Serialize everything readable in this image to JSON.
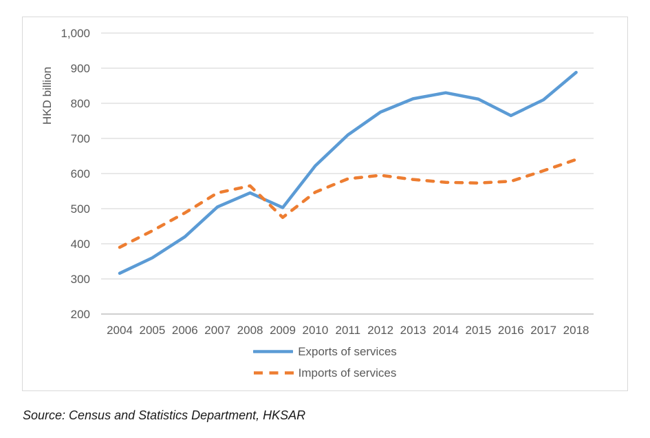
{
  "figure": {
    "ylabel": "HKD billion",
    "source": "Source: Census and Statistics Department, HKSAR"
  },
  "legend": {
    "items": [
      {
        "label": "Exports of services",
        "color": "#5B9BD5",
        "style": "solid"
      },
      {
        "label": "Imports of services",
        "color": "#ED7D31",
        "style": "dashed"
      }
    ]
  },
  "colors": {
    "gridline": "#D9D9D9",
    "axis_line": "#BFBFBF",
    "tick_label": "#595959",
    "exports_line": "#5B9BD5",
    "imports_line": "#ED7D31"
  },
  "chart_data": {
    "type": "line",
    "title": "",
    "xlabel": "",
    "ylabel": "HKD billion",
    "categories": [
      "2004",
      "2005",
      "2006",
      "2007",
      "2008",
      "2009",
      "2010",
      "2011",
      "2012",
      "2013",
      "2014",
      "2015",
      "2016",
      "2017",
      "2018"
    ],
    "series": [
      {
        "name": "Exports of services",
        "color": "#5B9BD5",
        "dash": "solid",
        "values": [
          316,
          360,
          420,
          505,
          545,
          503,
          622,
          710,
          775,
          813,
          830,
          812,
          765,
          810,
          888
        ]
      },
      {
        "name": "Imports of services",
        "color": "#ED7D31",
        "dash": "dashed",
        "values": [
          390,
          437,
          488,
          545,
          565,
          475,
          547,
          585,
          595,
          583,
          575,
          573,
          578,
          608,
          640
        ]
      }
    ],
    "ylim": [
      200,
      1000
    ],
    "ytick_step": 100,
    "grid": true,
    "legend_position": "bottom"
  }
}
